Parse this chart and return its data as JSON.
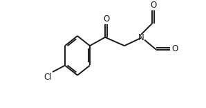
{
  "bg_color": "#ffffff",
  "line_color": "#1a1a1a",
  "line_width": 1.4,
  "font_size": 8.5,
  "fig_w": 2.98,
  "fig_h": 1.56,
  "dpi": 100,
  "xlim": [
    0,
    298
  ],
  "ylim": [
    0,
    156
  ]
}
